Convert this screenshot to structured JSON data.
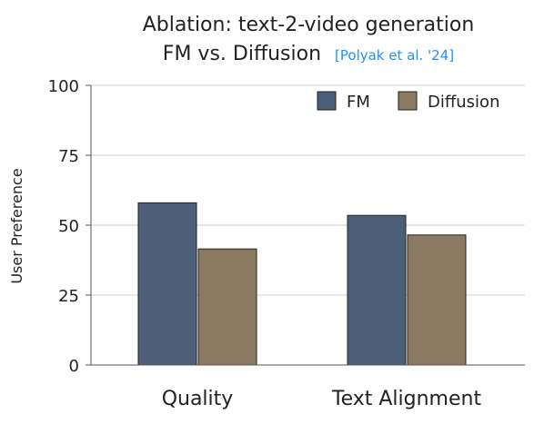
{
  "chart_data": {
    "type": "bar",
    "title_line1": "Ablation: text-2-video generation",
    "title_line2": "FM vs. Diffusion",
    "citation": "[Polyak et al. '24]",
    "xlabel": "",
    "ylabel": "User Preference",
    "ylim": [
      0,
      100
    ],
    "yticks": [
      0,
      25,
      50,
      75,
      100
    ],
    "categories": [
      "Quality",
      "Text Alignment"
    ],
    "series": [
      {
        "name": "FM",
        "values": [
          58,
          53.5
        ],
        "color": "#4b5f79"
      },
      {
        "name": "Diffusion",
        "values": [
          41.5,
          46.5
        ],
        "color": "#8a7a62"
      }
    ],
    "grid": "horizontal",
    "legend_position": "top-right",
    "colors": {
      "citation": "#1e90ff",
      "axis": "#555555",
      "grid": "#cfcfcf",
      "text": "#222222",
      "bar_stroke": "#222222"
    }
  }
}
